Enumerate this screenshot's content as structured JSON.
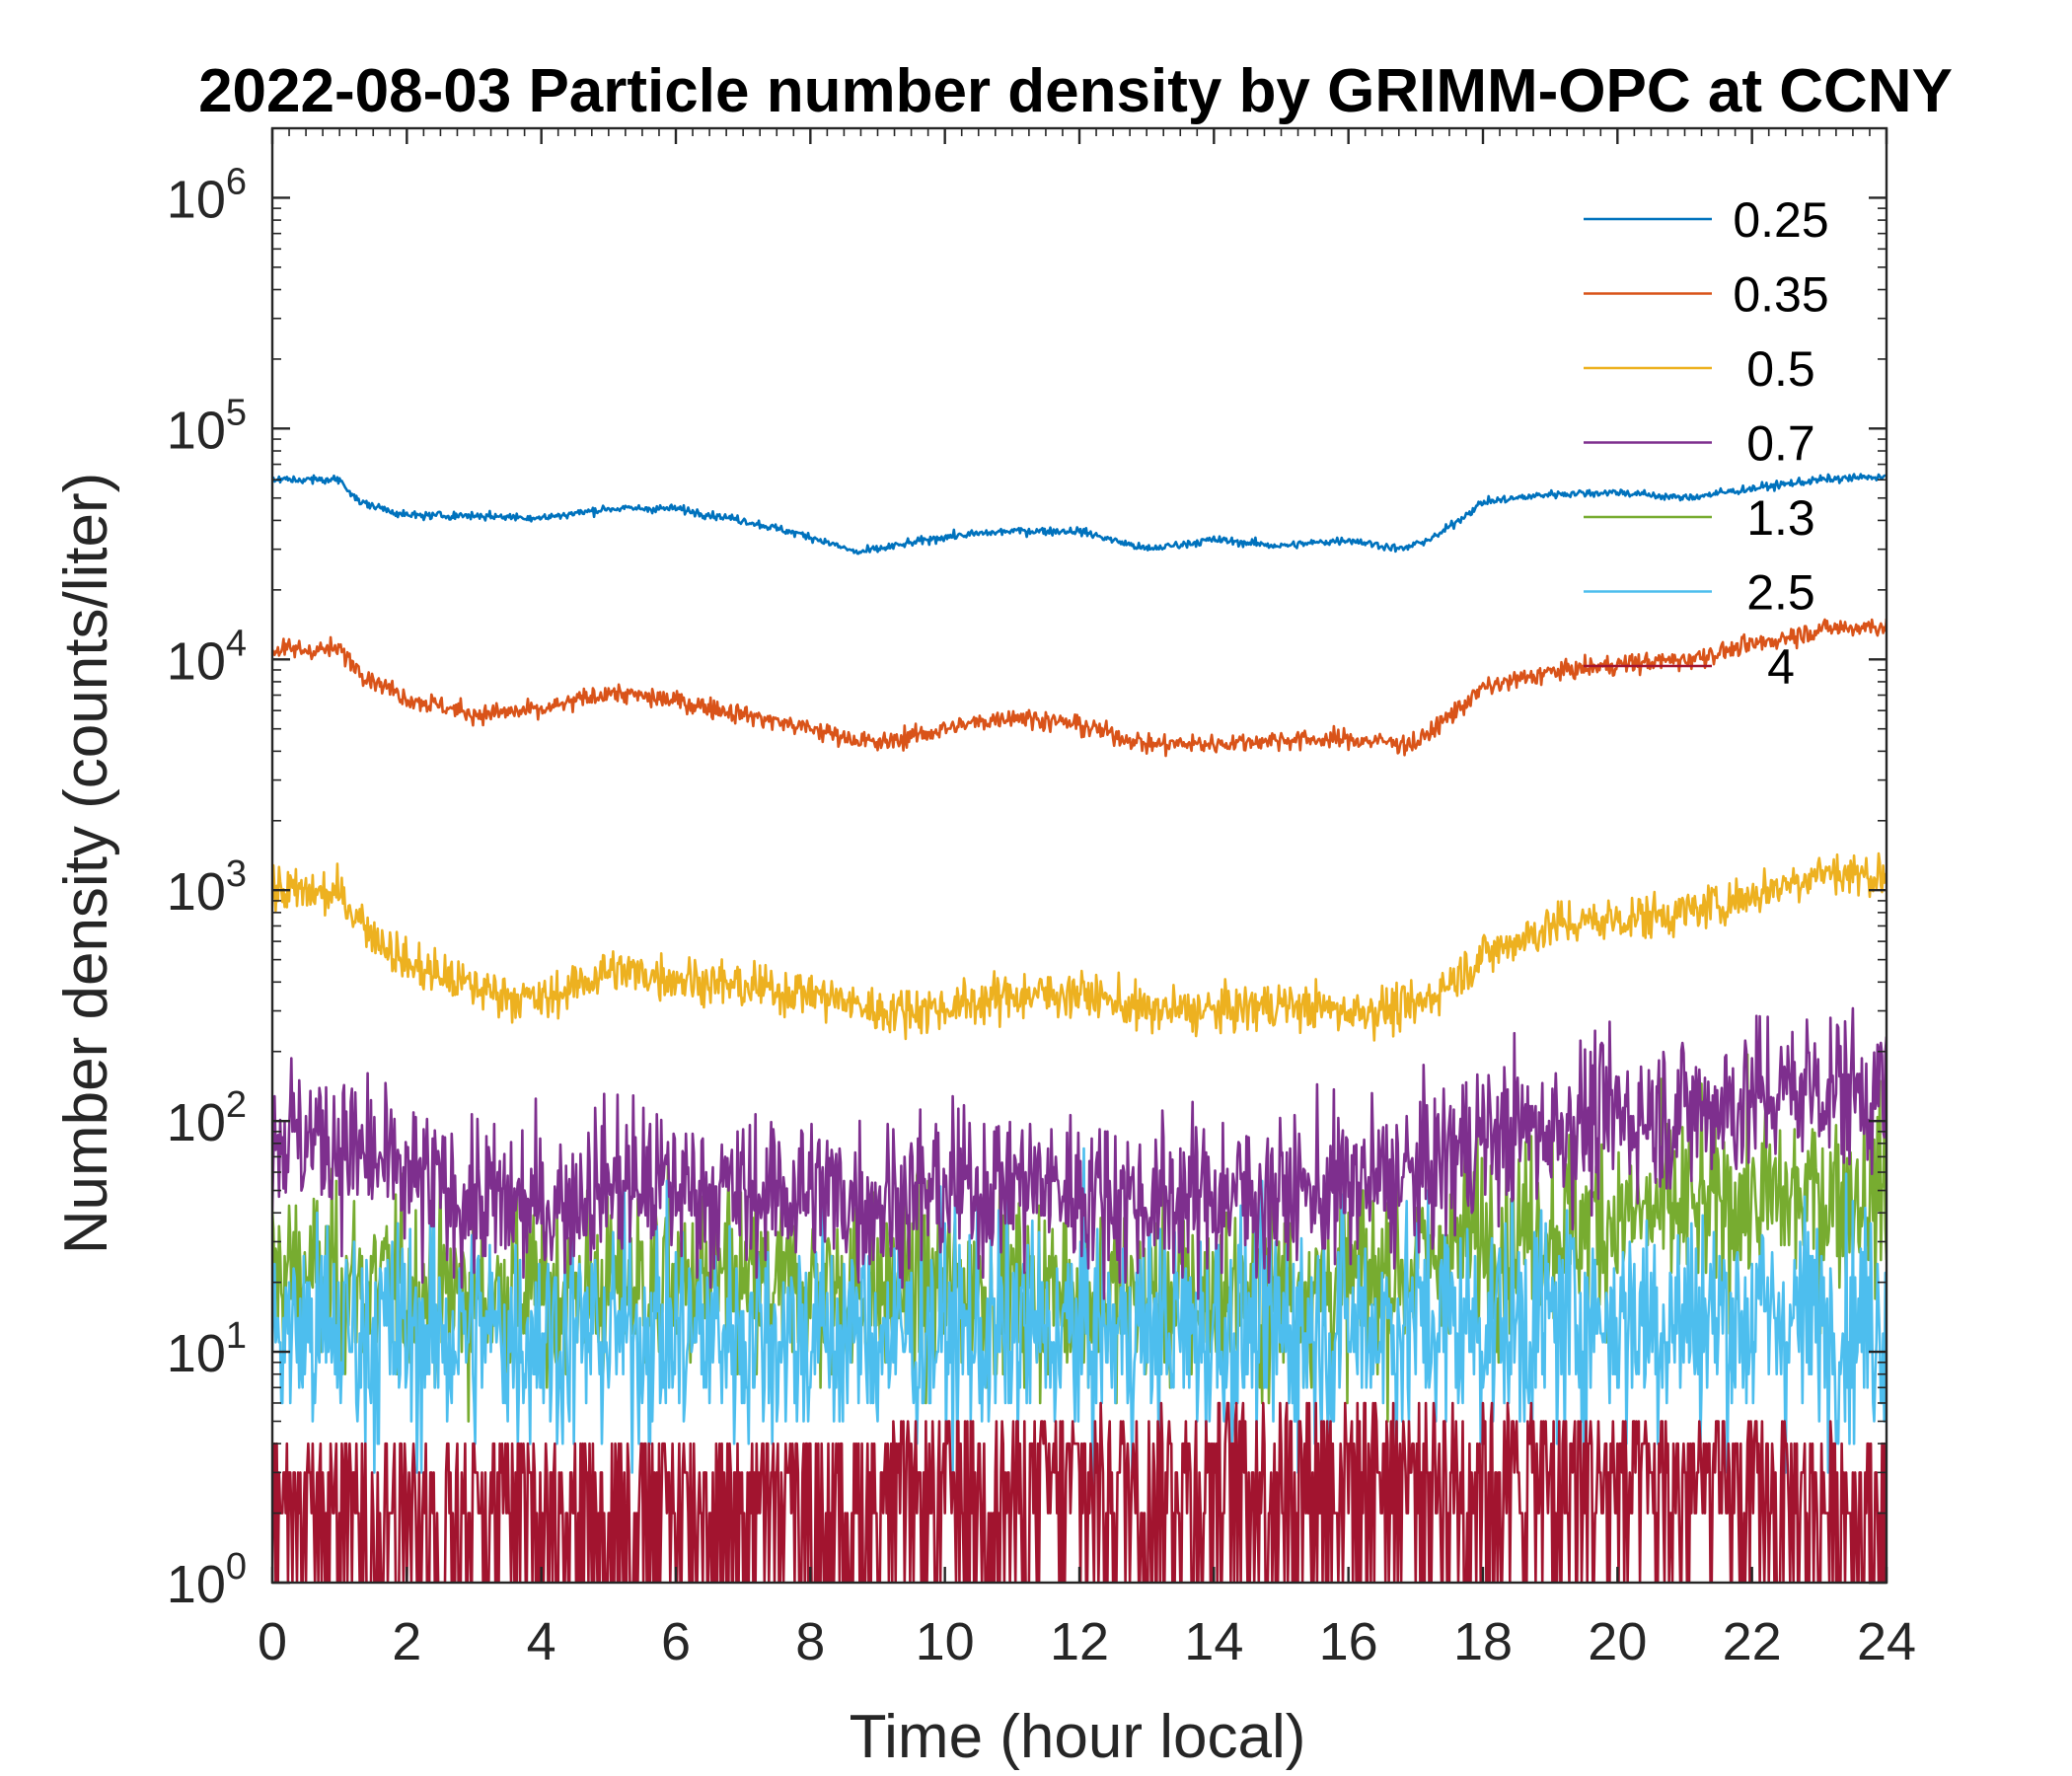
{
  "chart_data": {
    "type": "line",
    "title": "2022-08-03 Particle number density by GRIMM-OPC at CCNY",
    "xlabel": "Time (hour local)",
    "ylabel": "Number density (counts/liter)",
    "xlim": [
      0,
      24
    ],
    "ylim": [
      1,
      2000000
    ],
    "yscale": "log",
    "xticks": [
      0,
      2,
      4,
      6,
      8,
      10,
      12,
      14,
      16,
      18,
      20,
      22,
      24
    ],
    "yticks": [
      {
        "value": 1,
        "base": "10",
        "exp": "0"
      },
      {
        "value": 10,
        "base": "10",
        "exp": "1"
      },
      {
        "value": 100,
        "base": "10",
        "exp": "2"
      },
      {
        "value": 1000,
        "base": "10",
        "exp": "3"
      },
      {
        "value": 10000,
        "base": "10",
        "exp": "4"
      },
      {
        "value": 100000,
        "base": "10",
        "exp": "5"
      },
      {
        "value": 1000000,
        "base": "10",
        "exp": "6"
      }
    ],
    "grid": false,
    "legend_position": "top-right",
    "series": [
      {
        "name": "0.25",
        "color": "#0072BD",
        "noise": 0.012,
        "spike": 0.0,
        "x": [
          0,
          1,
          1.3,
          2,
          3,
          4,
          5,
          6,
          7,
          8,
          8.7,
          9,
          10,
          11,
          12,
          13,
          14,
          15,
          16,
          16.8,
          17.3,
          18,
          19,
          20,
          21,
          22,
          23,
          24
        ],
        "y": [
          60000,
          60000,
          48000,
          42000,
          42000,
          41000,
          45000,
          45000,
          40000,
          34000,
          29000,
          30000,
          34000,
          36000,
          36000,
          30000,
          33000,
          31000,
          33000,
          30000,
          34000,
          48000,
          52000,
          53000,
          50000,
          55000,
          60000,
          62000
        ]
      },
      {
        "name": "0.35",
        "color": "#D95319",
        "noise": 0.03,
        "spike": 0.0,
        "x": [
          0,
          1,
          1.4,
          2,
          3,
          4,
          5,
          6,
          7,
          8,
          9,
          10,
          11,
          12,
          13,
          14,
          15,
          16,
          17,
          18,
          19,
          20,
          21,
          22,
          23,
          24
        ],
        "y": [
          11000,
          11000,
          8500,
          6800,
          5800,
          6000,
          7200,
          6600,
          5800,
          5000,
          4300,
          5000,
          5700,
          5200,
          4300,
          4300,
          4500,
          4500,
          4300,
          7500,
          8800,
          9500,
          10000,
          11500,
          13500,
          14000
        ]
      },
      {
        "name": "0.5",
        "color": "#EDB120",
        "noise": 0.07,
        "spike": 0.0,
        "x": [
          0,
          1,
          1.5,
          2,
          3,
          4,
          5,
          6,
          7,
          8,
          9,
          10,
          11,
          12,
          13,
          14,
          15,
          16,
          17,
          18,
          19,
          20,
          21,
          22,
          23,
          24
        ],
        "y": [
          1000,
          950,
          650,
          480,
          380,
          330,
          450,
          420,
          380,
          360,
          300,
          310,
          350,
          360,
          300,
          300,
          320,
          300,
          310,
          520,
          700,
          750,
          800,
          950,
          1200,
          1150
        ]
      },
      {
        "name": "0.7",
        "color": "#7E2F8E",
        "noise": 0.11,
        "spike": 0.0,
        "x": [
          0,
          1,
          2,
          3,
          4,
          5,
          6,
          7,
          8,
          9,
          10,
          11,
          12,
          13,
          14,
          15,
          16,
          17,
          18,
          19,
          20,
          21,
          22,
          23,
          24
        ],
        "y": [
          90,
          80,
          55,
          45,
          42,
          55,
          52,
          48,
          50,
          45,
          50,
          55,
          50,
          45,
          48,
          48,
          52,
          58,
          85,
          95,
          105,
          110,
          125,
          145,
          130
        ]
      },
      {
        "name": "1.3",
        "color": "#77AC30",
        "noise": 0.13,
        "spike": 0.0,
        "x": [
          0,
          2,
          4,
          6,
          8,
          10,
          12,
          14,
          16,
          17,
          18,
          20,
          22,
          24
        ],
        "y": [
          22,
          18,
          18,
          20,
          18,
          19,
          18,
          17,
          20,
          24,
          32,
          38,
          45,
          50
        ]
      },
      {
        "name": "2.5",
        "color": "#4DBEEE",
        "noise": 0.16,
        "spike": 0.0,
        "x": [
          0,
          4,
          8,
          12,
          16,
          20,
          24
        ],
        "y": [
          12,
          12,
          12,
          12,
          13,
          14,
          14
        ]
      },
      {
        "name": "4",
        "color": "#A2142F",
        "noise": 0.0,
        "spike": 0.0,
        "x": [
          0,
          4,
          8,
          12,
          16,
          20,
          24
        ],
        "y": [
          2,
          2,
          2,
          2.5,
          3,
          2.5,
          2
        ]
      }
    ]
  }
}
